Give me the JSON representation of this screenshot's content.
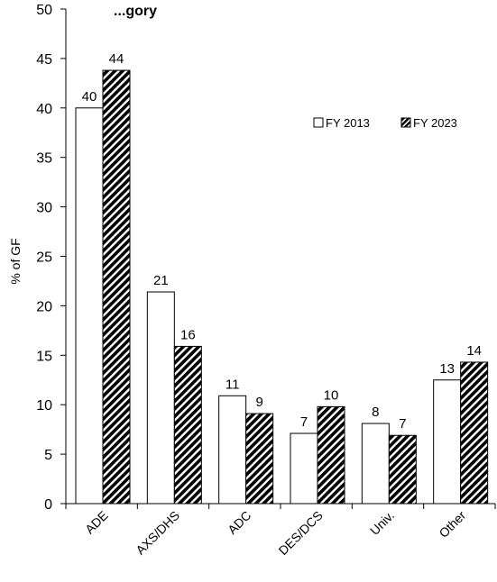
{
  "chart_data": {
    "type": "bar",
    "title": "...gory",
    "xlabel": "",
    "ylabel": "% of GF",
    "ylim": [
      0,
      50
    ],
    "yticks": [
      0,
      5,
      10,
      15,
      20,
      25,
      30,
      35,
      40,
      45,
      50
    ],
    "categories": [
      "ADE",
      "AXS/DHS",
      "ADC",
      "DES/DCS",
      "Univ.",
      "Other"
    ],
    "series": [
      {
        "name": "FY 2013",
        "values": [
          40,
          21.4,
          10.9,
          7.1,
          8.1,
          12.5
        ],
        "labels": [
          "40",
          "21",
          "11",
          "7",
          "8",
          "13"
        ],
        "fill": "#ffffff",
        "pattern": "solid"
      },
      {
        "name": "FY 2023",
        "values": [
          43.8,
          15.9,
          9.1,
          9.8,
          6.9,
          14.3
        ],
        "labels": [
          "44",
          "16",
          "9",
          "10",
          "7",
          "14"
        ],
        "fill": "#000000",
        "pattern": "diagonal-stripes"
      }
    ],
    "legend_position": "top-right",
    "grid": false,
    "colors": {
      "axis": "#000000",
      "bar_stroke": "#000000",
      "background": "#ffffff"
    }
  }
}
